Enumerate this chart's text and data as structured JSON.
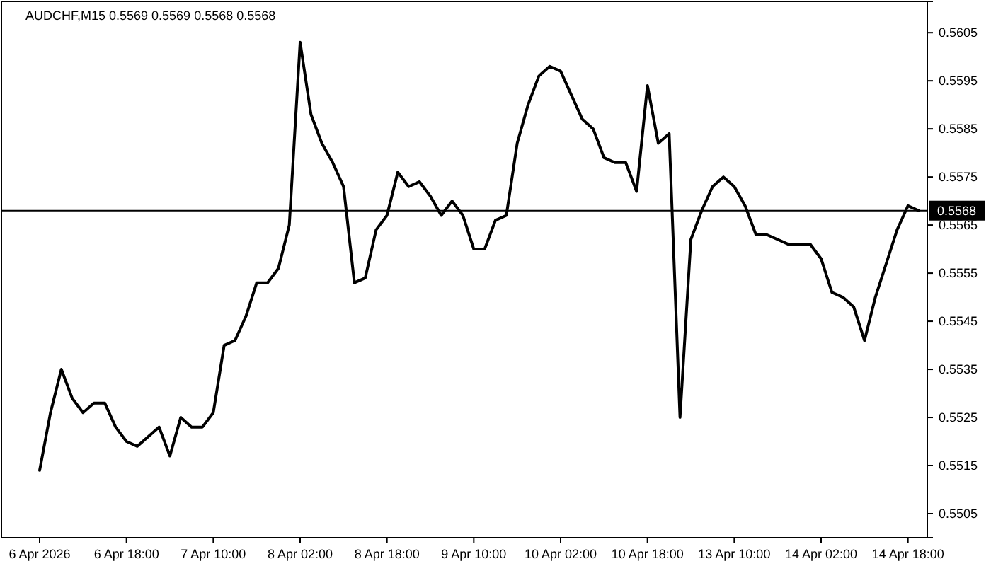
{
  "chart_data": {
    "type": "line",
    "title": "AUDCHF,M15  0.5569 0.5569 0.5568 0.5568",
    "categories": [
      "6 Apr 2026",
      null,
      null,
      null,
      null,
      null,
      null,
      null,
      "6 Apr 18:00",
      null,
      null,
      null,
      null,
      null,
      null,
      null,
      "7 Apr 10:00",
      null,
      null,
      null,
      null,
      null,
      null,
      null,
      "8 Apr 02:00",
      null,
      null,
      null,
      null,
      null,
      null,
      null,
      "8 Apr 18:00",
      null,
      null,
      null,
      null,
      null,
      null,
      null,
      "9 Apr 10:00",
      null,
      null,
      null,
      null,
      null,
      null,
      null,
      "10 Apr 02:00",
      null,
      null,
      null,
      null,
      null,
      null,
      null,
      "10 Apr 18:00",
      null,
      null,
      null,
      null,
      null,
      null,
      null,
      "13 Apr 10:00",
      null,
      null,
      null,
      null,
      null,
      null,
      null,
      "14 Apr 02:00",
      null,
      null,
      null,
      null,
      null,
      null,
      null,
      "14 Apr 18:00",
      null
    ],
    "series": [
      {
        "color": "#000000",
        "values": [
          0.5514,
          0.5526,
          0.5535,
          0.5529,
          0.5526,
          0.5528,
          0.5528,
          0.5523,
          0.552,
          0.5519,
          0.5521,
          0.5523,
          0.5517,
          0.5525,
          0.5523,
          0.5523,
          0.5526,
          0.554,
          0.5541,
          0.5546,
          0.5553,
          0.5553,
          0.5556,
          0.5565,
          0.5603,
          0.5588,
          0.5582,
          0.5578,
          0.5573,
          0.5553,
          0.5554,
          0.5564,
          0.5567,
          0.5576,
          0.5573,
          0.5574,
          0.5571,
          0.5567,
          0.557,
          0.5567,
          0.556,
          0.556,
          0.5566,
          0.5567,
          0.5582,
          0.559,
          0.5596,
          0.5598,
          0.5597,
          0.5592,
          0.5587,
          0.5585,
          0.5579,
          0.5578,
          0.5578,
          0.5572,
          0.5594,
          0.5582,
          0.5584,
          0.5525,
          0.5562,
          0.5568,
          0.5573,
          0.5575,
          0.5573,
          0.5569,
          0.5563,
          0.5563,
          0.5562,
          0.5561,
          0.5561,
          0.5561,
          0.5558,
          0.5551,
          0.555,
          0.5548,
          0.5541,
          0.555,
          0.5557,
          0.5564,
          0.5569,
          0.5568
        ]
      }
    ],
    "ylim": [
      0.55,
      0.56115
    ],
    "yticks": [
      0.5505,
      0.5515,
      0.5525,
      0.5535,
      0.5545,
      0.5555,
      0.5565,
      0.5575,
      0.5585,
      0.5595,
      0.5605
    ],
    "ref_lines": [
      {
        "axis": "y",
        "value": 0.5568,
        "label": "0.5568",
        "color": "#000000"
      }
    ],
    "grid": false,
    "marker": "none",
    "line_style": "solid"
  }
}
